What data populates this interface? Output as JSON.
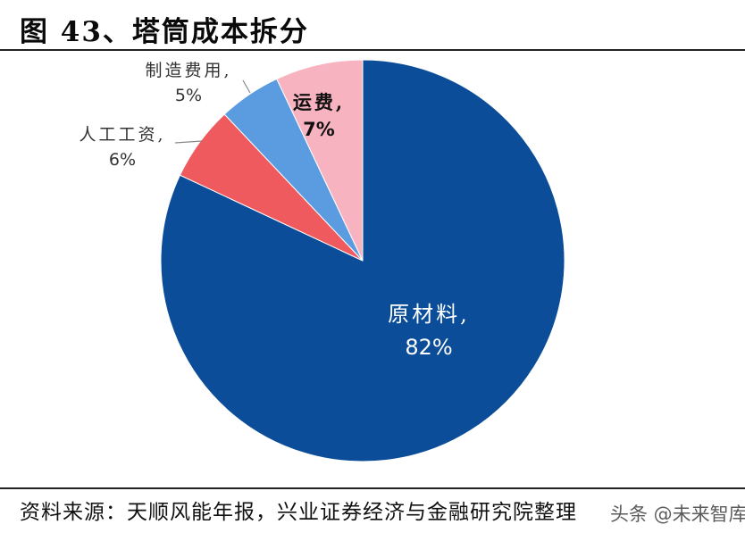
{
  "figure": {
    "title": "图 43、塔筒成本拆分",
    "source": "资料来源：天顺风能年报，兴业证券经济与金融研究院整理",
    "watermark": "头条 @未来智库"
  },
  "chart_data": {
    "type": "pie",
    "title": "图 43、塔筒成本拆分",
    "categories": [
      "原材料",
      "人工工资",
      "制造费用",
      "运费"
    ],
    "values": [
      82,
      6,
      5,
      7
    ],
    "unit": "%",
    "colors": [
      "#0B4D98",
      "#EE5A5E",
      "#5B9BE0",
      "#F7B3C0"
    ],
    "start_angle_deg": 0,
    "direction": "clockwise",
    "labels": [
      {
        "name": "原材料,",
        "pct": "82%"
      },
      {
        "name": "人工工资,",
        "pct": "6%"
      },
      {
        "name": "制造费用,",
        "pct": "5%"
      },
      {
        "name": "运费,",
        "pct": "7%"
      }
    ],
    "legend": "none"
  }
}
